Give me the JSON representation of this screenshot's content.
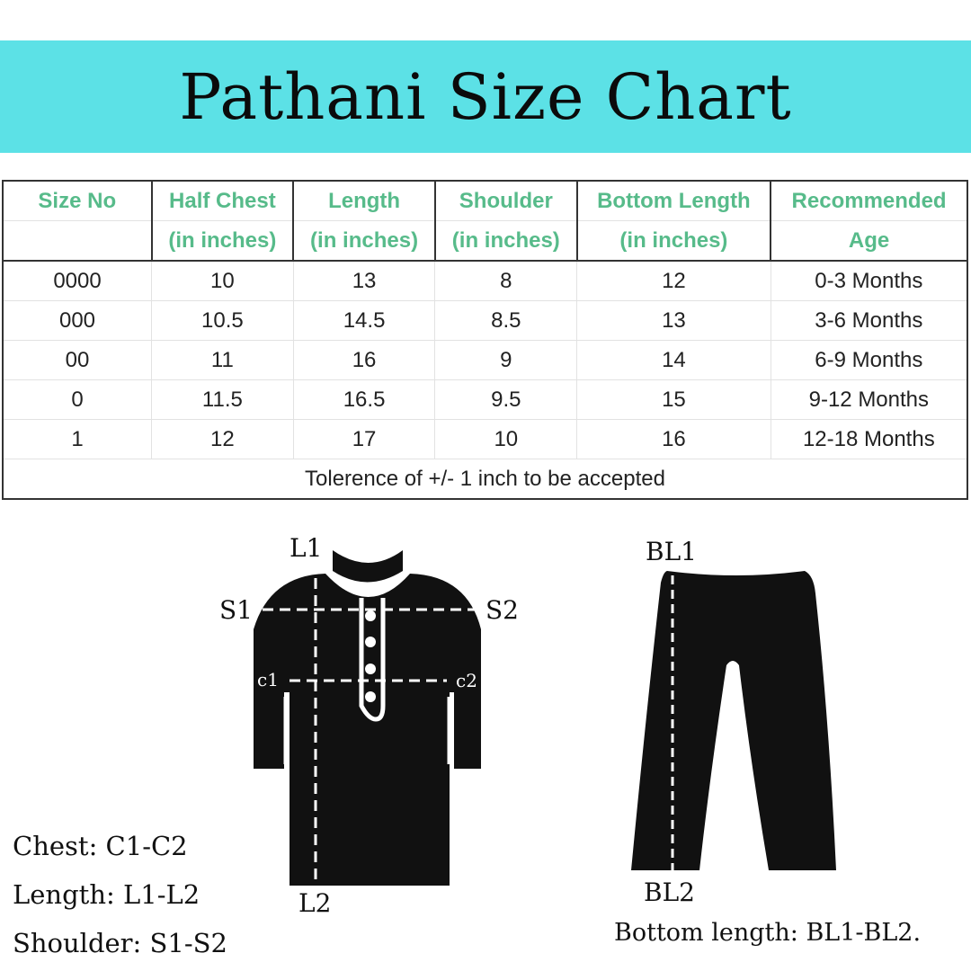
{
  "title": "Pathani Size Chart",
  "table": {
    "headers": [
      [
        "Size No",
        ""
      ],
      [
        "Half Chest",
        "(in inches)"
      ],
      [
        "Length",
        "(in inches)"
      ],
      [
        "Shoulder",
        "(in inches)"
      ],
      [
        "Bottom Length",
        "(in inches)"
      ],
      [
        "Recommended",
        "Age"
      ]
    ],
    "rows": [
      [
        "0000",
        "10",
        "13",
        "8",
        "12",
        "0-3 Months"
      ],
      [
        "000",
        "10.5",
        "14.5",
        "8.5",
        "13",
        "3-6 Months"
      ],
      [
        "00",
        "11",
        "16",
        "9",
        "14",
        "6-9 Months"
      ],
      [
        "0",
        "11.5",
        "16.5",
        "9.5",
        "15",
        "9-12 Months"
      ],
      [
        "1",
        "12",
        "17",
        "10",
        "16",
        "12-18 Months"
      ]
    ],
    "footer": "Tolerence of +/- 1 inch to be accepted",
    "header_color": "#57bb8a"
  },
  "diagram": {
    "kurta_labels": {
      "l1": "L1",
      "l2": "L2",
      "s1": "S1",
      "s2": "S2",
      "c1": "c1",
      "c2": "c2"
    },
    "pants_labels": {
      "bl1": "BL1",
      "bl2": "BL2"
    }
  },
  "legend": {
    "chest": "Chest: C1-C2",
    "length": "Length: L1-L2",
    "shoulder": "Shoulder: S1-S2",
    "bottom": "Bottom length: BL1-BL2."
  },
  "colors": {
    "banner": "#5ce1e6",
    "garment": "#111111"
  }
}
